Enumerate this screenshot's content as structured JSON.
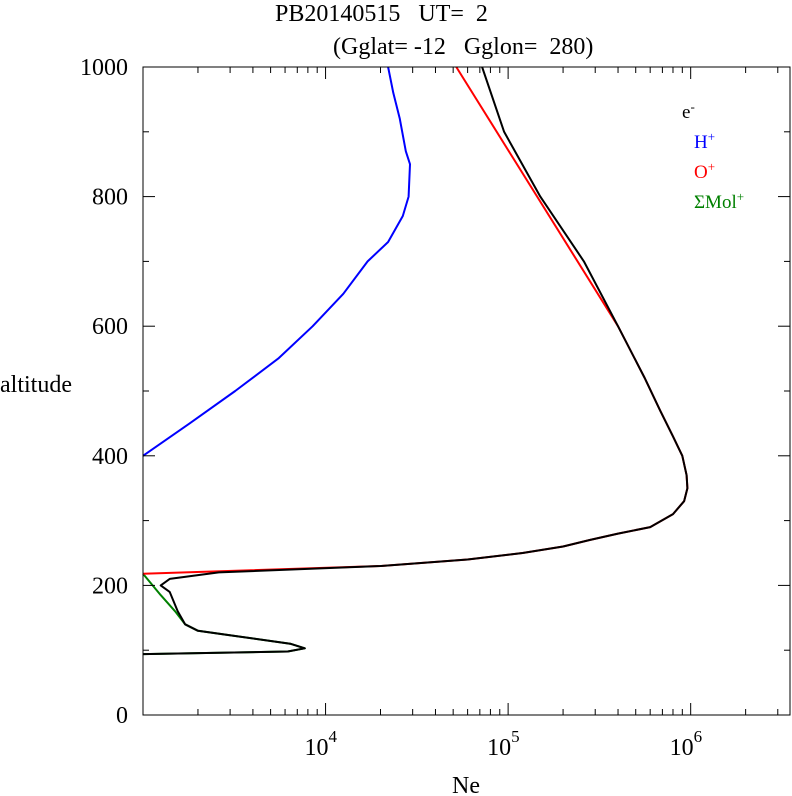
{
  "title": {
    "line1": "PB20140515   UT=  2",
    "line2": "(Gglat= -12   Gglon=  280)"
  },
  "chart_data": {
    "type": "line",
    "xlabel": "Ne",
    "ylabel": "altitude",
    "xscale": "log",
    "xlim": [
      1000,
      3500000
    ],
    "ylim": [
      0,
      1000
    ],
    "xticks": [
      {
        "base": "10",
        "exp": "4",
        "value": 10000
      },
      {
        "base": "10",
        "exp": "5",
        "value": 100000
      },
      {
        "base": "10",
        "exp": "6",
        "value": 1000000
      }
    ],
    "yticks": [
      "0",
      "200",
      "400",
      "600",
      "800",
      "1000"
    ],
    "grid": false,
    "legend_position": "top-right",
    "series": [
      {
        "name": "e-",
        "label_base": "e",
        "label_sup": "-",
        "color": "#000000",
        "points": [
          [
            1000,
            94
          ],
          [
            6200,
            98
          ],
          [
            7700,
            103
          ],
          [
            6400,
            110
          ],
          [
            2000,
            130
          ],
          [
            1700,
            140
          ],
          [
            1550,
            160
          ],
          [
            1400,
            190
          ],
          [
            1250,
            200
          ],
          [
            1400,
            210
          ],
          [
            2600,
            220
          ],
          [
            20000,
            230
          ],
          [
            60000,
            240
          ],
          [
            120000,
            250
          ],
          [
            200000,
            260
          ],
          [
            280000,
            270
          ],
          [
            400000,
            280
          ],
          [
            600000,
            290
          ],
          [
            800000,
            310
          ],
          [
            920000,
            330
          ],
          [
            960000,
            350
          ],
          [
            950000,
            370
          ],
          [
            900000,
            400
          ],
          [
            800000,
            430
          ],
          [
            680000,
            470
          ],
          [
            560000,
            520
          ],
          [
            400000,
            600
          ],
          [
            260000,
            700
          ],
          [
            150000,
            800
          ],
          [
            95000,
            900
          ],
          [
            72000,
            1000
          ]
        ]
      },
      {
        "name": "H+",
        "label_base": "H",
        "label_sup": "+",
        "color": "#0000ff",
        "points": [
          [
            1000,
            400
          ],
          [
            1800,
            450
          ],
          [
            3200,
            500
          ],
          [
            5500,
            550
          ],
          [
            8500,
            600
          ],
          [
            12500,
            650
          ],
          [
            17000,
            700
          ],
          [
            22000,
            730
          ],
          [
            26500,
            770
          ],
          [
            28500,
            800
          ],
          [
            29000,
            850
          ],
          [
            27500,
            870
          ],
          [
            25500,
            920
          ],
          [
            23500,
            960
          ],
          [
            22000,
            1000
          ]
        ]
      },
      {
        "name": "O+",
        "label_base": "O",
        "label_sup": "+",
        "color": "#ff0000",
        "points": [
          [
            1000,
            218
          ],
          [
            20000,
            230
          ],
          [
            60000,
            240
          ],
          [
            120000,
            250
          ],
          [
            200000,
            260
          ],
          [
            280000,
            270
          ],
          [
            400000,
            280
          ],
          [
            600000,
            290
          ],
          [
            800000,
            310
          ],
          [
            920000,
            330
          ],
          [
            960000,
            350
          ],
          [
            950000,
            370
          ],
          [
            900000,
            400
          ],
          [
            800000,
            430
          ],
          [
            680000,
            470
          ],
          [
            560000,
            520
          ],
          [
            400000,
            600
          ],
          [
            52000,
            1000
          ]
        ]
      },
      {
        "name": "ΣMol+",
        "label_base": "ΣMol",
        "label_sup": "+",
        "color": "#008000",
        "points": [
          [
            1000,
            94
          ],
          [
            6200,
            98
          ],
          [
            7700,
            103
          ],
          [
            6400,
            110
          ],
          [
            2000,
            130
          ],
          [
            1700,
            140
          ],
          [
            1500,
            160
          ],
          [
            1250,
            185
          ],
          [
            1000,
            218
          ]
        ]
      }
    ]
  }
}
